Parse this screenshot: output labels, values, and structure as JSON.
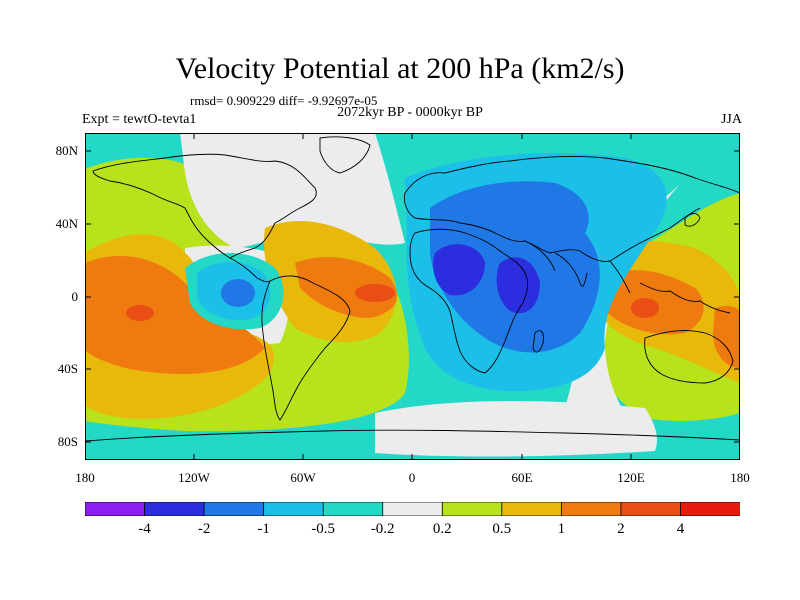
{
  "title": "Velocity Potential at 200 hPa (km2/s)",
  "stats": "rmsd= 0.909229 diff= -9.92697e-05",
  "experiment": "Expt = tewtO-tevta1",
  "period": "2072kyr BP - 0000kyr BP",
  "season": "JJA",
  "y_ticks": [
    "80N",
    "40N",
    "0",
    "40S",
    "80S"
  ],
  "x_ticks": [
    "180",
    "120W",
    "60W",
    "0",
    "60E",
    "120E",
    "180"
  ],
  "colorbar": {
    "colors": [
      "#8d1df0",
      "#2d2de0",
      "#1f78e6",
      "#1bbfe8",
      "#23d8c6",
      "#ececec",
      "#b8e21b",
      "#e8b80b",
      "#ee7a10",
      "#e94e14",
      "#e81a0e"
    ],
    "labels": [
      "-4",
      "-2",
      "-1",
      "-0.5",
      "-0.2",
      "0.2",
      "0.5",
      "1",
      "2",
      "4"
    ]
  }
}
